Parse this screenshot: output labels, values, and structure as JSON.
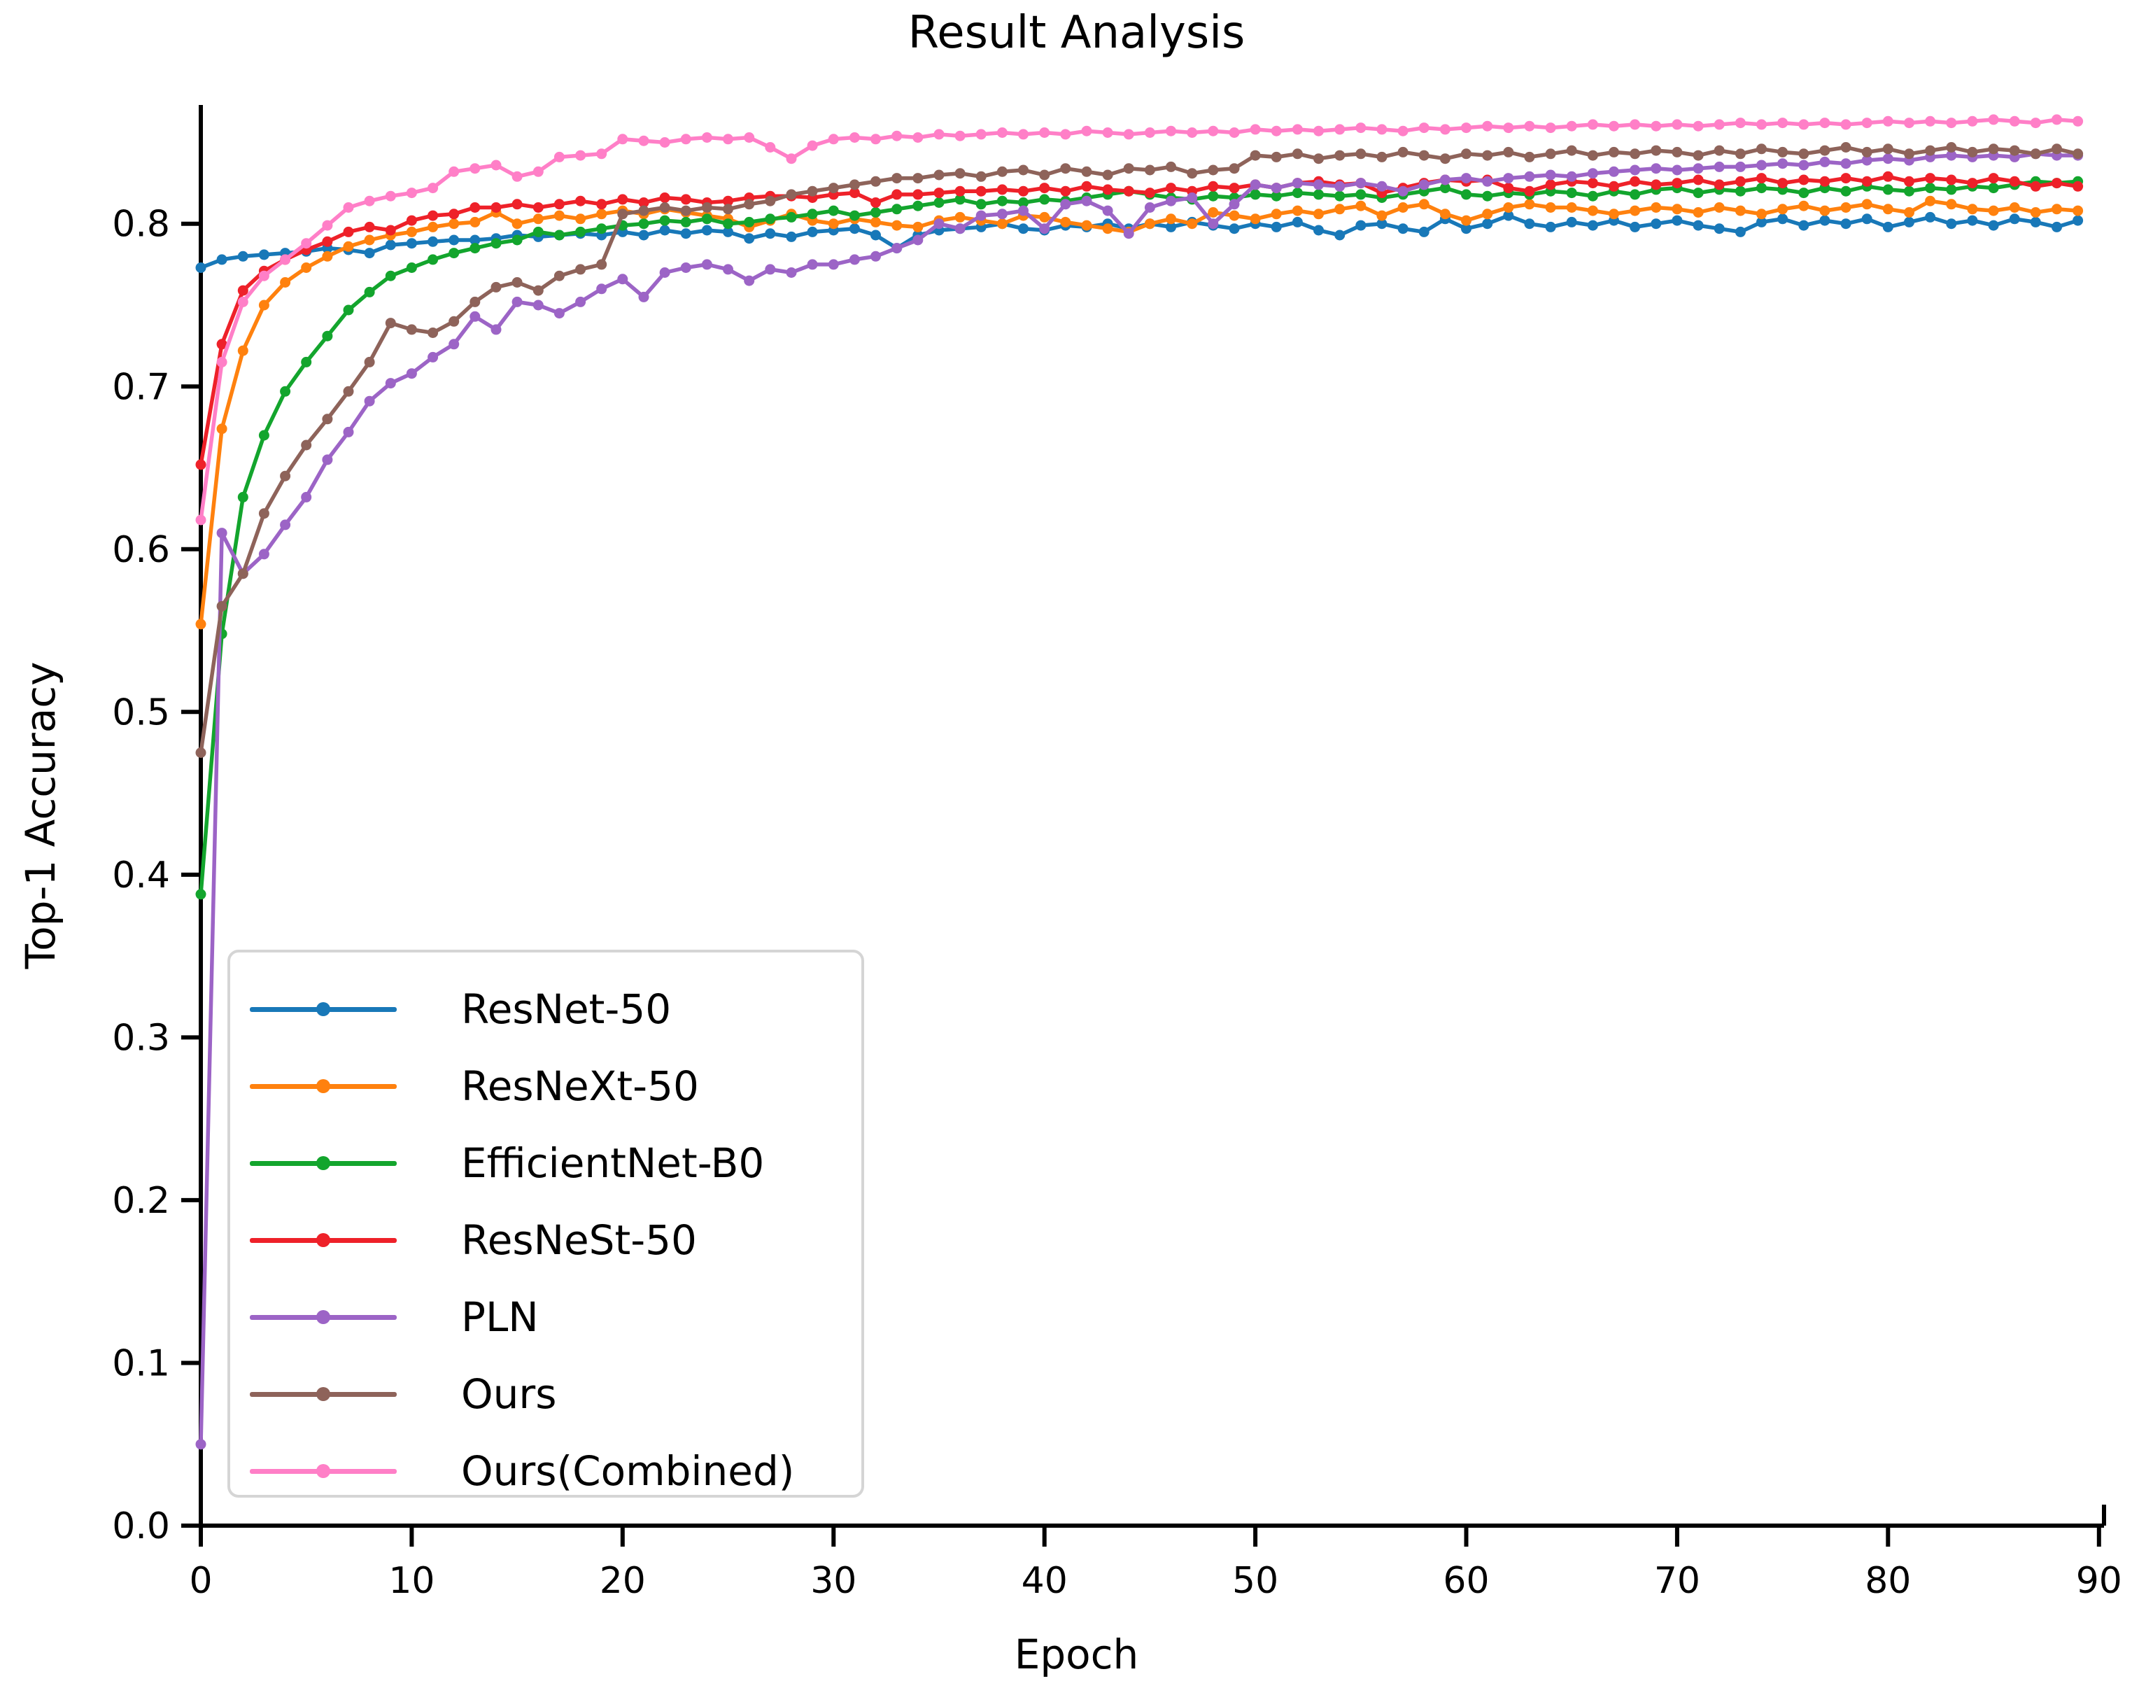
{
  "chart_data": {
    "type": "line",
    "title": "Result Analysis",
    "xlabel": "Epoch",
    "ylabel": "Top-1 Accuracy",
    "x_mode": "index (epoch 0-89, one point per epoch)",
    "xlim": [
      0,
      90.24
    ],
    "ylim": [
      0,
      0.873
    ],
    "xticks": [
      0,
      10,
      20,
      30,
      40,
      50,
      60,
      70,
      80,
      90
    ],
    "yticks": [
      0.0,
      0.1,
      0.2,
      0.3,
      0.4,
      0.5,
      0.6,
      0.7,
      0.8
    ],
    "grid": false,
    "legend_position": "lower left",
    "marker": "dot",
    "axis_color": "#000000",
    "series": [
      {
        "name": "ResNet-50",
        "color": "#1878b8",
        "values": [
          0.773,
          0.778,
          0.78,
          0.781,
          0.782,
          0.783,
          0.785,
          0.784,
          0.782,
          0.787,
          0.788,
          0.789,
          0.79,
          0.79,
          0.791,
          0.793,
          0.792,
          0.793,
          0.794,
          0.793,
          0.795,
          0.793,
          0.796,
          0.794,
          0.796,
          0.795,
          0.791,
          0.794,
          0.792,
          0.795,
          0.796,
          0.797,
          0.793,
          0.785,
          0.793,
          0.796,
          0.797,
          0.798,
          0.8,
          0.797,
          0.796,
          0.799,
          0.798,
          0.8,
          0.797,
          0.8,
          0.798,
          0.801,
          0.799,
          0.797,
          0.8,
          0.798,
          0.801,
          0.796,
          0.793,
          0.799,
          0.8,
          0.797,
          0.795,
          0.803,
          0.797,
          0.8,
          0.805,
          0.8,
          0.798,
          0.801,
          0.799,
          0.802,
          0.798,
          0.8,
          0.802,
          0.799,
          0.797,
          0.795,
          0.801,
          0.803,
          0.799,
          0.802,
          0.8,
          0.803,
          0.798,
          0.801,
          0.804,
          0.8,
          0.802,
          0.799,
          0.803,
          0.801,
          0.798,
          0.802
        ]
      },
      {
        "name": "ResNeXt-50",
        "color": "#ff810e",
        "values": [
          0.554,
          0.674,
          0.722,
          0.75,
          0.764,
          0.773,
          0.78,
          0.786,
          0.79,
          0.793,
          0.795,
          0.798,
          0.8,
          0.801,
          0.807,
          0.8,
          0.803,
          0.805,
          0.803,
          0.806,
          0.808,
          0.806,
          0.809,
          0.807,
          0.805,
          0.803,
          0.798,
          0.802,
          0.806,
          0.802,
          0.8,
          0.803,
          0.801,
          0.799,
          0.798,
          0.802,
          0.804,
          0.802,
          0.8,
          0.805,
          0.804,
          0.801,
          0.799,
          0.797,
          0.795,
          0.8,
          0.803,
          0.8,
          0.807,
          0.805,
          0.803,
          0.806,
          0.808,
          0.806,
          0.809,
          0.811,
          0.805,
          0.81,
          0.812,
          0.806,
          0.802,
          0.806,
          0.81,
          0.812,
          0.81,
          0.81,
          0.808,
          0.806,
          0.808,
          0.81,
          0.809,
          0.807,
          0.81,
          0.808,
          0.806,
          0.809,
          0.811,
          0.808,
          0.81,
          0.812,
          0.809,
          0.807,
          0.814,
          0.812,
          0.809,
          0.808,
          0.81,
          0.807,
          0.809,
          0.808
        ]
      },
      {
        "name": "EfficientNet-B0",
        "color": "#13a52d",
        "values": [
          0.388,
          0.548,
          0.632,
          0.67,
          0.697,
          0.715,
          0.731,
          0.747,
          0.758,
          0.768,
          0.773,
          0.778,
          0.782,
          0.785,
          0.788,
          0.79,
          0.795,
          0.793,
          0.795,
          0.797,
          0.799,
          0.8,
          0.802,
          0.801,
          0.803,
          0.8,
          0.801,
          0.803,
          0.804,
          0.806,
          0.808,
          0.805,
          0.807,
          0.809,
          0.811,
          0.813,
          0.815,
          0.812,
          0.814,
          0.813,
          0.815,
          0.814,
          0.816,
          0.818,
          0.82,
          0.818,
          0.816,
          0.815,
          0.817,
          0.816,
          0.818,
          0.817,
          0.819,
          0.818,
          0.817,
          0.818,
          0.816,
          0.818,
          0.82,
          0.822,
          0.818,
          0.817,
          0.819,
          0.818,
          0.82,
          0.819,
          0.817,
          0.82,
          0.818,
          0.821,
          0.822,
          0.819,
          0.821,
          0.82,
          0.822,
          0.821,
          0.819,
          0.822,
          0.82,
          0.823,
          0.821,
          0.82,
          0.822,
          0.821,
          0.823,
          0.822,
          0.824,
          0.826,
          0.825,
          0.826
        ]
      },
      {
        "name": "ResNeSt-50",
        "color": "#ee2129",
        "values": [
          0.652,
          0.726,
          0.759,
          0.771,
          0.778,
          0.784,
          0.789,
          0.795,
          0.798,
          0.796,
          0.802,
          0.805,
          0.806,
          0.81,
          0.81,
          0.812,
          0.81,
          0.812,
          0.814,
          0.812,
          0.815,
          0.813,
          0.816,
          0.815,
          0.813,
          0.814,
          0.816,
          0.817,
          0.817,
          0.816,
          0.818,
          0.819,
          0.813,
          0.818,
          0.818,
          0.819,
          0.82,
          0.82,
          0.821,
          0.82,
          0.822,
          0.82,
          0.823,
          0.821,
          0.82,
          0.819,
          0.822,
          0.82,
          0.823,
          0.822,
          0.824,
          0.822,
          0.825,
          0.826,
          0.824,
          0.825,
          0.819,
          0.822,
          0.825,
          0.827,
          0.826,
          0.827,
          0.822,
          0.82,
          0.824,
          0.826,
          0.825,
          0.823,
          0.826,
          0.824,
          0.825,
          0.827,
          0.824,
          0.826,
          0.828,
          0.825,
          0.827,
          0.826,
          0.828,
          0.826,
          0.829,
          0.826,
          0.828,
          0.827,
          0.825,
          0.828,
          0.826,
          0.823,
          0.825,
          0.823
        ]
      },
      {
        "name": "PLN",
        "color": "#9c64c6",
        "values": [
          0.05,
          0.61,
          0.585,
          0.597,
          0.615,
          0.632,
          0.655,
          0.672,
          0.691,
          0.702,
          0.708,
          0.718,
          0.726,
          0.743,
          0.735,
          0.752,
          0.75,
          0.745,
          0.752,
          0.76,
          0.766,
          0.755,
          0.77,
          0.773,
          0.775,
          0.772,
          0.765,
          0.772,
          0.77,
          0.775,
          0.775,
          0.778,
          0.78,
          0.785,
          0.79,
          0.8,
          0.797,
          0.805,
          0.806,
          0.808,
          0.797,
          0.812,
          0.814,
          0.808,
          0.794,
          0.81,
          0.814,
          0.816,
          0.8,
          0.812,
          0.824,
          0.822,
          0.825,
          0.824,
          0.823,
          0.825,
          0.823,
          0.82,
          0.824,
          0.827,
          0.828,
          0.826,
          0.828,
          0.829,
          0.83,
          0.829,
          0.831,
          0.832,
          0.833,
          0.834,
          0.833,
          0.834,
          0.835,
          0.835,
          0.836,
          0.837,
          0.836,
          0.838,
          0.837,
          0.839,
          0.84,
          0.839,
          0.841,
          0.842,
          0.841,
          0.842,
          0.841,
          0.843,
          0.842,
          0.842
        ]
      },
      {
        "name": "Ours",
        "color": "#8e635a",
        "values": [
          0.475,
          0.565,
          0.585,
          0.622,
          0.645,
          0.664,
          0.68,
          0.697,
          0.715,
          0.739,
          0.735,
          0.733,
          0.74,
          0.752,
          0.761,
          0.764,
          0.759,
          0.768,
          0.772,
          0.775,
          0.806,
          0.808,
          0.81,
          0.808,
          0.81,
          0.809,
          0.812,
          0.814,
          0.818,
          0.82,
          0.822,
          0.824,
          0.826,
          0.828,
          0.828,
          0.83,
          0.831,
          0.829,
          0.832,
          0.833,
          0.83,
          0.834,
          0.832,
          0.83,
          0.834,
          0.833,
          0.835,
          0.831,
          0.833,
          0.834,
          0.842,
          0.841,
          0.843,
          0.84,
          0.842,
          0.843,
          0.841,
          0.844,
          0.842,
          0.84,
          0.843,
          0.842,
          0.844,
          0.841,
          0.843,
          0.845,
          0.842,
          0.844,
          0.843,
          0.845,
          0.844,
          0.842,
          0.845,
          0.843,
          0.846,
          0.844,
          0.843,
          0.845,
          0.847,
          0.844,
          0.846,
          0.843,
          0.845,
          0.847,
          0.844,
          0.846,
          0.845,
          0.843,
          0.846,
          0.843
        ]
      },
      {
        "name": "Ours(Combined)",
        "color": "#ff7fc7",
        "values": [
          0.618,
          0.715,
          0.752,
          0.768,
          0.778,
          0.788,
          0.799,
          0.81,
          0.814,
          0.817,
          0.819,
          0.822,
          0.832,
          0.834,
          0.836,
          0.829,
          0.832,
          0.841,
          0.842,
          0.843,
          0.852,
          0.851,
          0.85,
          0.852,
          0.853,
          0.852,
          0.853,
          0.847,
          0.84,
          0.848,
          0.852,
          0.853,
          0.852,
          0.854,
          0.853,
          0.855,
          0.854,
          0.855,
          0.856,
          0.855,
          0.856,
          0.855,
          0.857,
          0.856,
          0.855,
          0.856,
          0.857,
          0.856,
          0.857,
          0.856,
          0.858,
          0.857,
          0.858,
          0.857,
          0.858,
          0.859,
          0.858,
          0.857,
          0.859,
          0.858,
          0.859,
          0.86,
          0.859,
          0.86,
          0.859,
          0.86,
          0.861,
          0.86,
          0.861,
          0.86,
          0.861,
          0.86,
          0.861,
          0.862,
          0.861,
          0.862,
          0.861,
          0.862,
          0.861,
          0.862,
          0.863,
          0.862,
          0.863,
          0.862,
          0.863,
          0.864,
          0.863,
          0.862,
          0.864,
          0.863
        ]
      }
    ]
  }
}
